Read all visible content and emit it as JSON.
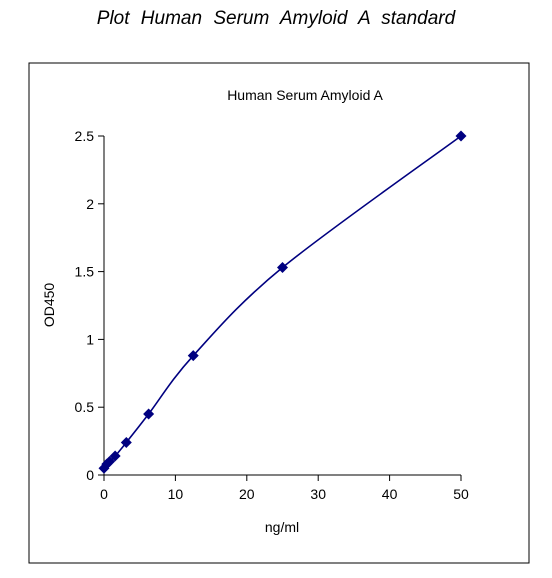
{
  "page_heading": "Plot Human Serum Amyloid A standard",
  "chart_data": {
    "type": "line",
    "title": "Human Serum Amyloid A",
    "xlabel": "ng/ml",
    "ylabel": "OD450",
    "xlim": [
      0,
      50
    ],
    "ylim": [
      0,
      2.5
    ],
    "x_ticks": [
      0,
      10,
      20,
      30,
      40,
      50
    ],
    "y_ticks": [
      0,
      0.5,
      1,
      1.5,
      2,
      2.5
    ],
    "x_tick_labels": [
      "0",
      "10",
      "20",
      "30",
      "40",
      "50"
    ],
    "y_tick_labels": [
      "0",
      "0.5",
      "1",
      "1.5",
      "2",
      "2.5"
    ],
    "grid": false,
    "legend": "none",
    "marker": "diamond",
    "line_style": "smooth",
    "series": [
      {
        "x": [
          0,
          0.39,
          0.78,
          1.56,
          3.125,
          6.25,
          12.5,
          25,
          50
        ],
        "y": [
          0.05,
          0.08,
          0.1,
          0.14,
          0.24,
          0.45,
          0.88,
          1.53,
          2.5
        ],
        "color": "#000080"
      }
    ]
  }
}
